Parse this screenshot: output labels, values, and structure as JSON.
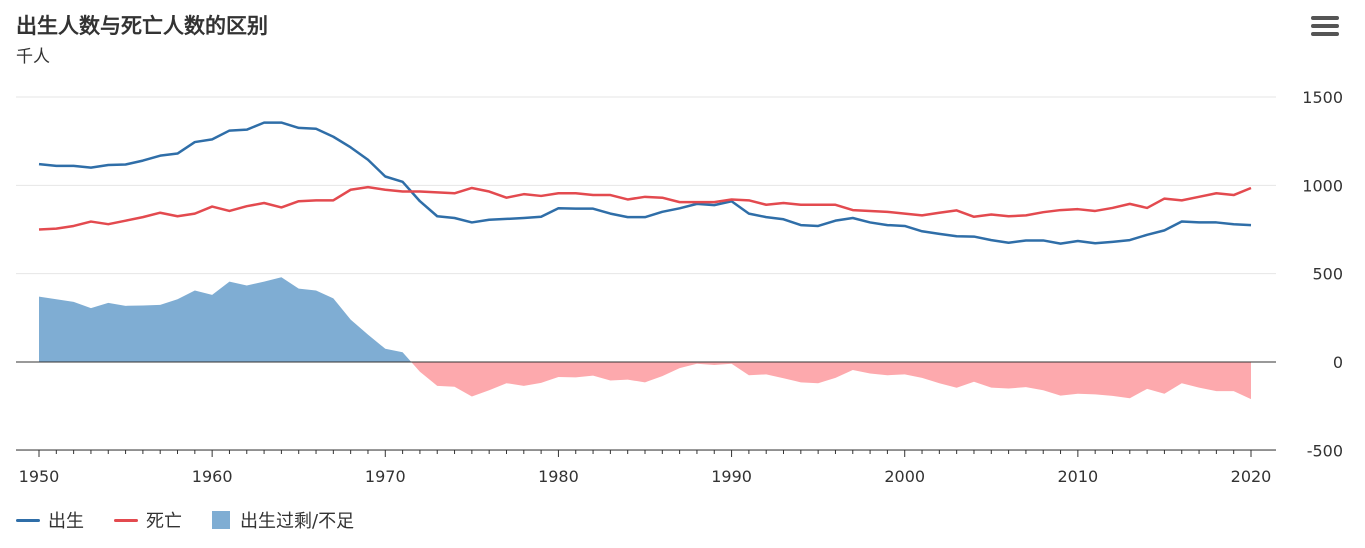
{
  "chart_data": {
    "type": "line",
    "title": "出生人数与死亡人数的区别",
    "subtitle": "千人",
    "x": [
      1950,
      1951,
      1952,
      1953,
      1954,
      1955,
      1956,
      1957,
      1958,
      1959,
      1960,
      1961,
      1962,
      1963,
      1964,
      1965,
      1966,
      1967,
      1968,
      1969,
      1970,
      1971,
      1972,
      1973,
      1974,
      1975,
      1976,
      1977,
      1978,
      1979,
      1980,
      1981,
      1982,
      1983,
      1984,
      1985,
      1986,
      1987,
      1988,
      1989,
      1990,
      1991,
      1992,
      1993,
      1994,
      1995,
      1996,
      1997,
      1998,
      1999,
      2000,
      2001,
      2002,
      2003,
      2004,
      2005,
      2006,
      2007,
      2008,
      2009,
      2010,
      2011,
      2012,
      2013,
      2014,
      2015,
      2016,
      2017,
      2018,
      2019,
      2020
    ],
    "series": [
      {
        "name": "出生",
        "color": "#2f6ea8",
        "values": [
          1120,
          1110,
          1110,
          1100,
          1115,
          1118,
          1140,
          1168,
          1180,
          1245,
          1260,
          1310,
          1315,
          1355,
          1355,
          1325,
          1320,
          1275,
          1215,
          1145,
          1050,
          1020,
          910,
          825,
          815,
          790,
          805,
          810,
          815,
          822,
          870,
          868,
          868,
          840,
          820,
          820,
          850,
          870,
          895,
          888,
          910,
          840,
          820,
          808,
          775,
          770,
          800,
          815,
          790,
          775,
          770,
          740,
          725,
          712,
          710,
          690,
          675,
          688,
          688,
          670,
          685,
          672,
          680,
          690,
          720,
          745,
          795,
          790,
          790,
          780,
          775
        ]
      },
      {
        "name": "死亡",
        "color": "#e34a4f",
        "values": [
          750,
          755,
          770,
          795,
          780,
          800,
          820,
          845,
          825,
          840,
          880,
          855,
          882,
          900,
          875,
          910,
          915,
          915,
          975,
          990,
          975,
          965,
          965,
          960,
          955,
          985,
          965,
          930,
          950,
          940,
          955,
          955,
          945,
          945,
          920,
          935,
          930,
          905,
          905,
          905,
          920,
          915,
          890,
          900,
          890,
          890,
          890,
          860,
          855,
          850,
          840,
          830,
          845,
          858,
          822,
          835,
          825,
          830,
          848,
          860,
          865,
          855,
          872,
          895,
          872,
          925,
          915,
          935,
          955,
          945,
          985
        ]
      },
      {
        "name": "出生过剩/不足",
        "color": "#7fadd3",
        "negative_color": "#fda9ad",
        "values": [
          370,
          355,
          340,
          305,
          335,
          318,
          320,
          323,
          355,
          405,
          380,
          455,
          433,
          455,
          480,
          415,
          405,
          360,
          240,
          155,
          75,
          55,
          -55,
          -135,
          -140,
          -195,
          -160,
          -120,
          -135,
          -118,
          -85,
          -87,
          -77,
          -105,
          -100,
          -115,
          -80,
          -35,
          -10,
          -17,
          -10,
          -75,
          -70,
          -92,
          -115,
          -120,
          -90,
          -45,
          -65,
          -75,
          -70,
          -90,
          -120,
          -146,
          -112,
          -145,
          -150,
          -142,
          -160,
          -190,
          -180,
          -183,
          -192,
          -205,
          -152,
          -180,
          -120,
          -145,
          -165,
          -165,
          -210
        ]
      }
    ],
    "ylim": [
      -500,
      1500
    ],
    "yticks": [
      -500,
      0,
      500,
      1000,
      1500
    ],
    "xticks": [
      1950,
      1960,
      1970,
      1980,
      1990,
      2000,
      2010,
      2020
    ],
    "grid": true,
    "legend_position": "bottom-left"
  },
  "ui": {
    "menu_icon": "hamburger-icon"
  }
}
